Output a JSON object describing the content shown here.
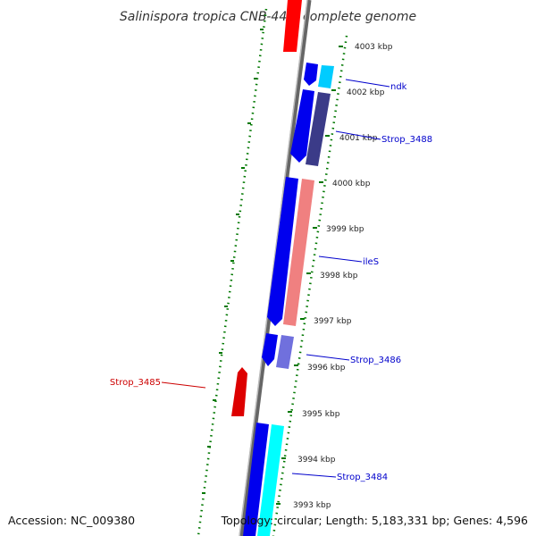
{
  "title": "Salinispora tropica CNB-440, complete genome",
  "accession": "Accession: NC_009380",
  "topology": "Topology: circular; Length: 5,183,331 bp; Genes: 4,596",
  "colors": {
    "plus_strand": "#ff0000",
    "minus_strand": "#0000ff",
    "label_plus": "#cc0000",
    "label_minus": "#0000cc",
    "backbone": "#888888",
    "ticks": "#007700",
    "pink_track": "#f08080",
    "cyan_track": "#00ffff",
    "light_blue_track": "#00ccff",
    "dark_purple_track": "#3b3b88",
    "light_purple_track": "#7070dd"
  },
  "kbp_labels": [
    "4003 kbp",
    "4002 kbp",
    "4001 kbp",
    "4000 kbp",
    "3999 kbp",
    "3998 kbp",
    "3997 kbp",
    "3996 kbp",
    "3995 kbp",
    "3994 kbp",
    "3993 kbp"
  ],
  "gene_labels": [
    {
      "name": "ndk",
      "strand": "minus"
    },
    {
      "name": "Strop_3488",
      "strand": "minus"
    },
    {
      "name": "ileS",
      "strand": "minus"
    },
    {
      "name": "Strop_3486",
      "strand": "minus"
    },
    {
      "name": "Strop_3485",
      "strand": "plus"
    },
    {
      "name": "Strop_3484",
      "strand": "minus"
    }
  ]
}
